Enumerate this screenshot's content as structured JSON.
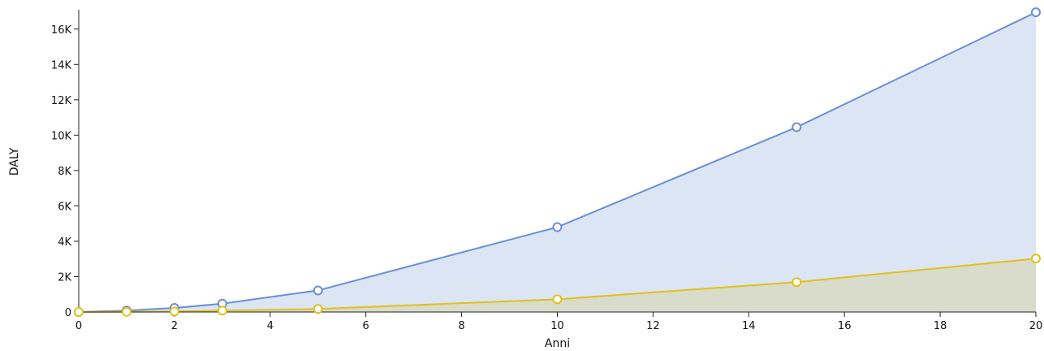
{
  "chart_data": {
    "type": "area",
    "xlabel": "Anni",
    "ylabel": "DALY",
    "xlim": [
      0,
      20
    ],
    "ylim": [
      0,
      17000
    ],
    "x_ticks": [
      0,
      2,
      4,
      6,
      8,
      10,
      12,
      14,
      16,
      18,
      20
    ],
    "x_tick_labels": [
      "0",
      "2",
      "4",
      "6",
      "8",
      "10",
      "12",
      "14",
      "16",
      "18",
      "20"
    ],
    "y_ticks": [
      0,
      2000,
      4000,
      6000,
      8000,
      10000,
      12000,
      14000,
      16000
    ],
    "y_tick_labels": [
      "0",
      "2K",
      "4K",
      "6K",
      "8K",
      "10K",
      "12K",
      "14K",
      "16K"
    ],
    "grid": false,
    "legend": "none",
    "series": [
      {
        "color": "#6a8fd6",
        "fill": "#dce5f4",
        "x": [
          0,
          1,
          2,
          3,
          5,
          10,
          15,
          20
        ],
        "values": [
          0,
          80,
          230,
          470,
          1220,
          4800,
          10450,
          16950
        ]
      },
      {
        "color": "#e0c01c",
        "fill": "#d9dcca",
        "x": [
          0,
          1,
          2,
          3,
          5,
          10,
          15,
          20
        ],
        "values": [
          0,
          10,
          30,
          80,
          170,
          720,
          1690,
          3020
        ]
      }
    ]
  }
}
